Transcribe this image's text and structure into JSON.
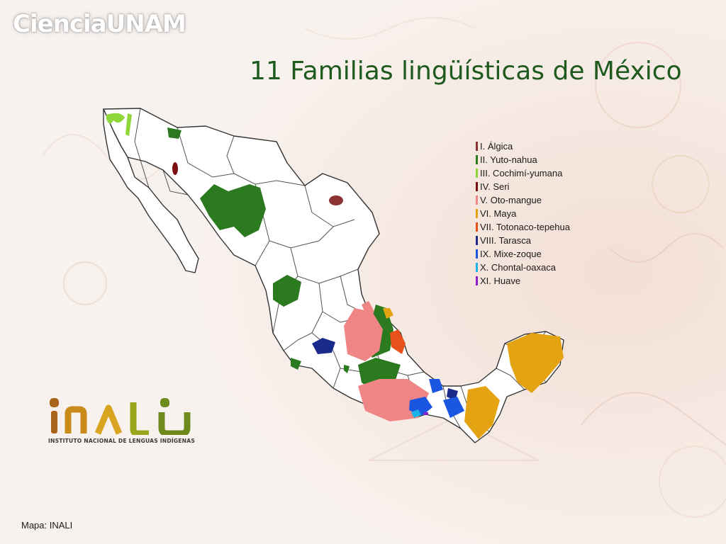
{
  "brand": "CienciaUNAM",
  "title": "11 Familias lingüísticas de México",
  "legend": [
    {
      "label": "I. Álgica",
      "color": "#8b3333"
    },
    {
      "label": "II. Yuto-nahua",
      "color": "#2b7a1f"
    },
    {
      "label": "III. Cochimí-yumana",
      "color": "#8ed63a"
    },
    {
      "label": "IV. Seri",
      "color": "#7a0f12"
    },
    {
      "label": "V. Oto-mangue",
      "color": "#f08585"
    },
    {
      "label": "VI. Maya",
      "color": "#e3a312"
    },
    {
      "label": "VII. Totonaco-tepehua",
      "color": "#e8501c"
    },
    {
      "label": "VIII. Tarasca",
      "color": "#1a2a8a"
    },
    {
      "label": "IX. Mixe-zoque",
      "color": "#1a56e0"
    },
    {
      "label": "X. Chontal-oaxaca",
      "color": "#1cb4e8"
    },
    {
      "label": "XI. Huave",
      "color": "#8a1ec8"
    }
  ],
  "logo": {
    "wordmark": "INALI",
    "subtitle": "INSTITUTO NACIONAL DE LENGUAS INDÍGENAS",
    "colors": [
      "#a8641a",
      "#c98a1a",
      "#d9a520",
      "#9aa51c",
      "#6d8a1a"
    ]
  },
  "credit": "Mapa: INALI",
  "colors": {
    "title": "#1e5a1e",
    "country_fill": "#ffffff",
    "border": "#333333"
  }
}
